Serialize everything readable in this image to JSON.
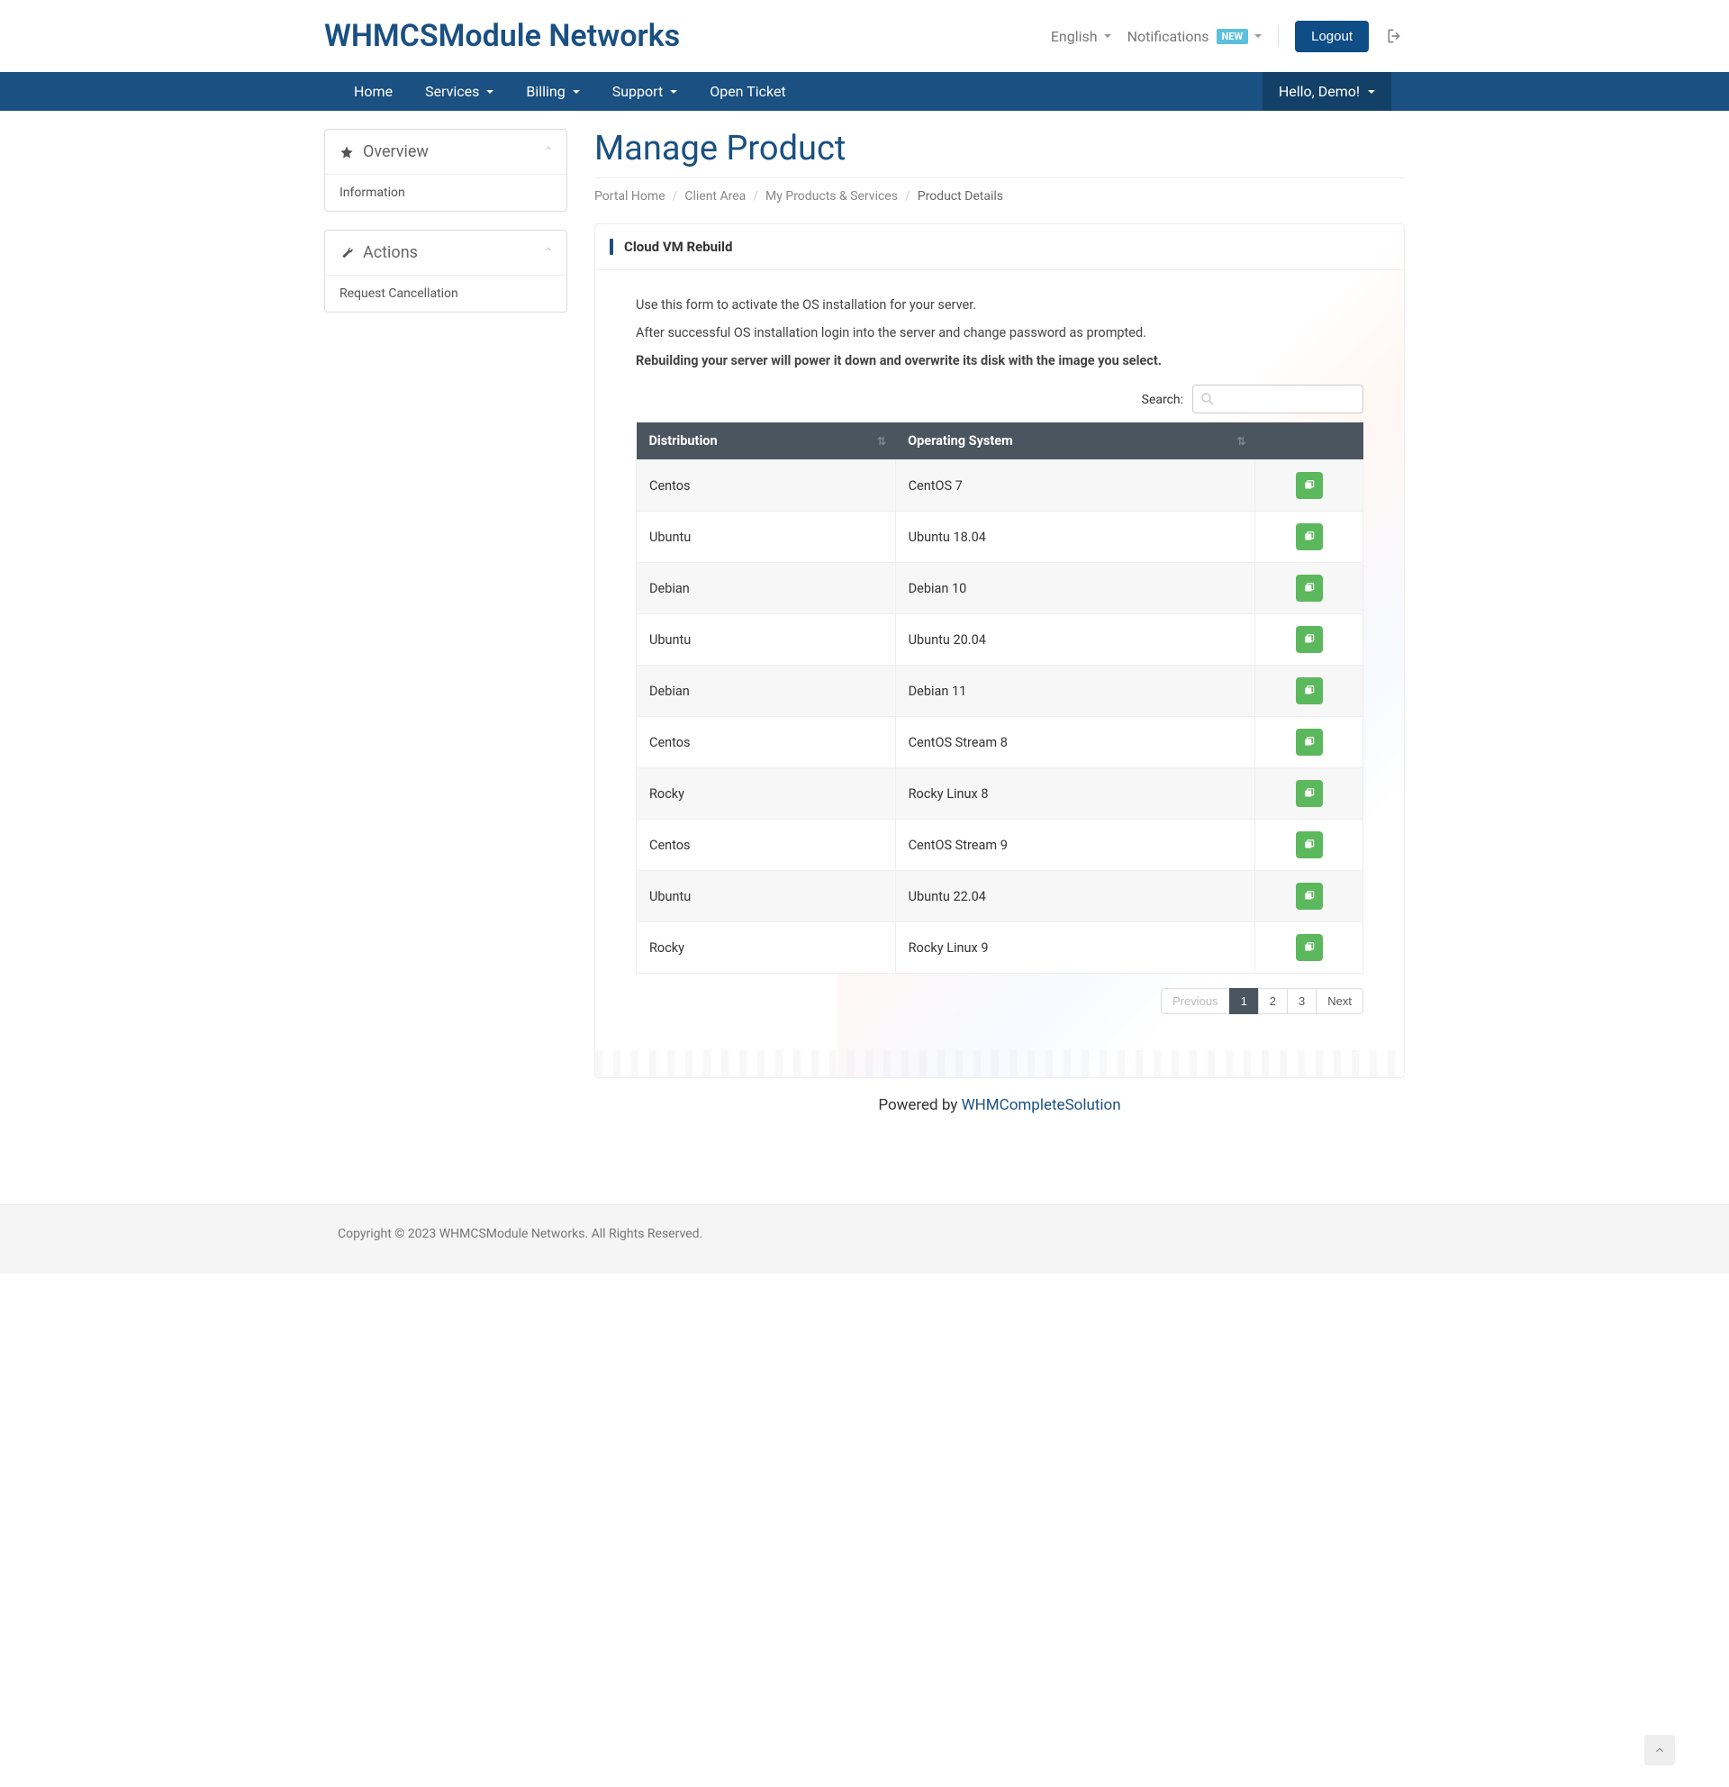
{
  "brand": "WHMCSModule Networks",
  "header": {
    "language": "English",
    "notifications": "Notifications",
    "new_badge": "NEW",
    "logout": "Logout"
  },
  "nav": {
    "items": [
      "Home",
      "Services",
      "Billing",
      "Support",
      "Open Ticket"
    ],
    "dropdown_idx": [
      1,
      2,
      3
    ],
    "user": "Hello, Demo!"
  },
  "sidebar": {
    "panels": [
      {
        "icon": "star",
        "title": "Overview",
        "items": [
          "Information"
        ]
      },
      {
        "icon": "wrench",
        "title": "Actions",
        "items": [
          "Request Cancellation"
        ]
      }
    ]
  },
  "page": {
    "title": "Manage Product",
    "breadcrumb": [
      "Portal Home",
      "Client Area",
      "My Products & Services",
      "Product Details"
    ]
  },
  "card": {
    "title": "Cloud VM Rebuild",
    "help": [
      "Use this form to activate the OS installation for your server.",
      "After successful OS installation login into the server and change password as prompted.",
      "Rebuilding your server will power it down and overwrite its disk with the image you select."
    ],
    "search_label": "Search:",
    "search_placeholder": "",
    "columns": [
      "Distribution",
      "Operating System"
    ],
    "rows": [
      {
        "dist": "Centos",
        "os": "CentOS 7"
      },
      {
        "dist": "Ubuntu",
        "os": "Ubuntu 18.04"
      },
      {
        "dist": "Debian",
        "os": "Debian 10"
      },
      {
        "dist": "Ubuntu",
        "os": "Ubuntu 20.04"
      },
      {
        "dist": "Debian",
        "os": "Debian 11"
      },
      {
        "dist": "Centos",
        "os": "CentOS Stream 8"
      },
      {
        "dist": "Rocky",
        "os": "Rocky Linux 8"
      },
      {
        "dist": "Centos",
        "os": "CentOS Stream 9"
      },
      {
        "dist": "Ubuntu",
        "os": "Ubuntu 22.04"
      },
      {
        "dist": "Rocky",
        "os": "Rocky Linux 9"
      }
    ],
    "pagination": {
      "prev": "Previous",
      "pages": [
        "1",
        "2",
        "3"
      ],
      "next": "Next",
      "active": 0
    }
  },
  "powered": {
    "prefix": "Powered by ",
    "link": "WHMCompleteSolution"
  },
  "footer": "Copyright © 2023 WHMCSModule Networks. All Rights Reserved.",
  "colors": {
    "primary": "#1a5082",
    "navbar_dark": "#134066",
    "table_head": "#4a5560",
    "success": "#5cb85c",
    "info": "#5bc0de"
  }
}
